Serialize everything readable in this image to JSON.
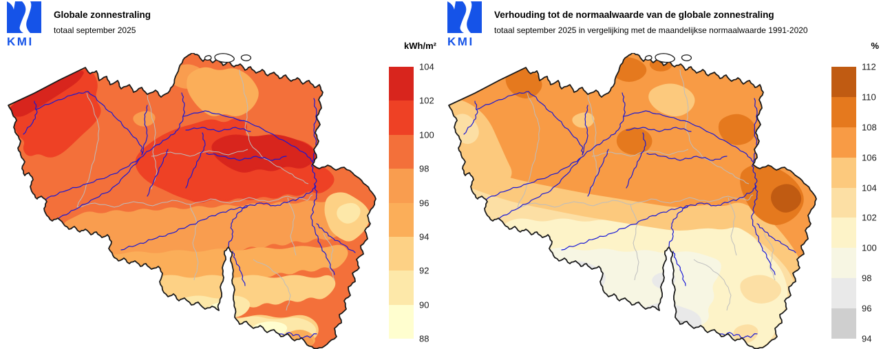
{
  "left_panel": {
    "title": "Globale zonnestraling",
    "subtitle": "totaal september 2025",
    "logo_text": "KMI",
    "colorbar": {
      "unit": "kWh/m²",
      "tick_labels": [
        "104",
        "102",
        "100",
        "98",
        "96",
        "94",
        "92",
        "90",
        "88"
      ],
      "segment_colors": [
        "#D8251D",
        "#EE4125",
        "#F3703A",
        "#F99D4F",
        "#FBAE59",
        "#FDD185",
        "#FDE8A9",
        "#FFFECF"
      ]
    }
  },
  "right_panel": {
    "title": "Verhouding tot de normaalwaarde van de globale zonnestraling",
    "subtitle": "totaal september 2025 in vergelijking met de maandelijkse normaalwaarde 1991-2020",
    "logo_text": "KMI",
    "colorbar": {
      "unit": "%",
      "tick_labels": [
        "112",
        "110",
        "108",
        "106",
        "104",
        "102",
        "100",
        "98",
        "96",
        "94"
      ],
      "segment_colors": [
        "#C05B12",
        "#E5791E",
        "#F89B45",
        "#FCC97D",
        "#FCDFA4",
        "#FDF3C8",
        "#F7F6E3",
        "#E9E9E9",
        "#CFCFCF"
      ]
    }
  },
  "map": {
    "outline_color": "#1A1A1A",
    "river_color": "#1717D6",
    "province_border_color": "#BDBDBD",
    "non_country_fill": "#FFFFFF"
  },
  "brand": {
    "logo_color": "#1553E8"
  }
}
